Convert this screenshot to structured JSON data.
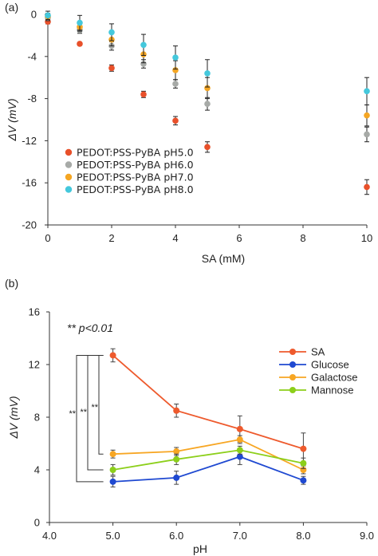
{
  "chart_data": [
    {
      "type": "scatter",
      "panel": "(a)",
      "xlabel": "SA  (mM)",
      "ylabel": "ΔV (mV)",
      "xlim": [
        0,
        10
      ],
      "ylim": [
        -20,
        0
      ],
      "xticks": [
        0,
        2,
        4,
        6,
        8,
        10
      ],
      "yticks": [
        0,
        -4,
        -8,
        -12,
        -16,
        -20
      ],
      "legend_position": "bottom-left",
      "series": [
        {
          "name": "PEDOT:PSS-PyBA pH5.0",
          "color": "#e8502a",
          "x": [
            0,
            1,
            2,
            3,
            4,
            5,
            10
          ],
          "y": [
            -0.7,
            -2.8,
            -5.1,
            -7.6,
            -10.1,
            -12.6,
            -16.4
          ],
          "err": [
            0.2,
            0.15,
            0.3,
            0.3,
            0.4,
            0.5,
            0.7
          ]
        },
        {
          "name": "PEDOT:PSS-PyBA pH6.0",
          "color": "#a7aaa7",
          "x": [
            0,
            1,
            2,
            3,
            4,
            5,
            10
          ],
          "y": [
            -0.3,
            -1.5,
            -3.0,
            -4.7,
            -6.6,
            -8.5,
            -11.4
          ],
          "err": [
            0.3,
            0.3,
            0.4,
            0.4,
            0.4,
            0.6,
            0.7
          ]
        },
        {
          "name": "PEDOT:PSS-PyBA pH7.0",
          "color": "#f5a623",
          "x": [
            0,
            1,
            2,
            3,
            4,
            5,
            10
          ],
          "y": [
            -0.2,
            -1.2,
            -2.4,
            -3.8,
            -5.3,
            -7.0,
            -9.6
          ],
          "err": [
            0.3,
            0.4,
            0.6,
            0.8,
            0.9,
            1.0,
            1.0
          ]
        },
        {
          "name": "PEDOT:PSS-PyBA pH8.0",
          "color": "#44c8dc",
          "x": [
            0,
            1,
            2,
            3,
            4,
            5,
            10
          ],
          "y": [
            -0.1,
            -0.8,
            -1.7,
            -2.9,
            -4.1,
            -5.6,
            -7.3
          ],
          "err": [
            0.4,
            0.7,
            0.8,
            1.0,
            1.1,
            1.3,
            1.3
          ]
        }
      ]
    },
    {
      "type": "line",
      "panel": "(b)",
      "xlabel": "pH",
      "ylabel": "ΔV (mV)",
      "xlim": [
        4.0,
        9.0
      ],
      "ylim": [
        0,
        16
      ],
      "xticks": [
        4.0,
        5.0,
        6.0,
        7.0,
        8.0,
        9.0
      ],
      "yticks": [
        0,
        4,
        8,
        12,
        16
      ],
      "annotation": "** p<0.01",
      "significance_marks": [
        "**",
        "**",
        "**"
      ],
      "legend_position": "right",
      "x": [
        5.0,
        6.0,
        7.0,
        8.0
      ],
      "series": [
        {
          "name": "SA",
          "color": "#ee5a2d",
          "values": [
            12.7,
            8.5,
            7.1,
            5.6
          ],
          "err": [
            0.5,
            0.5,
            1.0,
            1.2
          ]
        },
        {
          "name": "Glucose",
          "color": "#1f49d1",
          "values": [
            3.1,
            3.4,
            5.0,
            3.2
          ],
          "err": [
            0.4,
            0.5,
            0.6,
            0.3
          ]
        },
        {
          "name": "Galactose",
          "color": "#f7a623",
          "values": [
            5.2,
            5.4,
            6.3,
            4.0
          ],
          "err": [
            0.3,
            0.3,
            0.3,
            0.3
          ]
        },
        {
          "name": "Mannose",
          "color": "#8ccf1a",
          "values": [
            4.0,
            4.8,
            5.5,
            4.5
          ],
          "err": [
            0.4,
            0.4,
            0.3,
            0.4
          ]
        }
      ]
    }
  ]
}
